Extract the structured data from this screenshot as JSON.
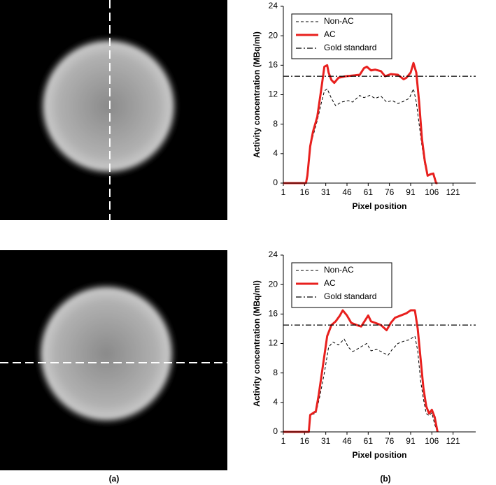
{
  "panel_labels": [
    "(a)",
    "(b)"
  ],
  "chart_data": [
    {
      "type": "line",
      "x_label": "Pixel position",
      "y_label": "Activity concentration (MBq/ml)",
      "xlim": [
        1,
        137
      ],
      "ylim": [
        0,
        24
      ],
      "xticks": [
        1,
        16,
        31,
        46,
        61,
        76,
        91,
        106,
        121
      ],
      "yticks": [
        0,
        4,
        8,
        12,
        16,
        20,
        24
      ],
      "legend": "upper left",
      "series": [
        {
          "name": "Non-AC",
          "color": "#000000",
          "linestyle": "dashed",
          "x": [
            1,
            17,
            18,
            20,
            25,
            28,
            30,
            32,
            35,
            38,
            42,
            47,
            50,
            55,
            58,
            62,
            66,
            70,
            74,
            78,
            82,
            86,
            90,
            93,
            95,
            97,
            99,
            101,
            103,
            107,
            109
          ],
          "values": [
            0,
            0,
            1,
            5,
            8.5,
            11,
            12.5,
            12.8,
            11.5,
            10.5,
            11,
            11.2,
            11,
            11.9,
            11.6,
            11.9,
            11.5,
            11.8,
            11,
            11.2,
            10.8,
            11.1,
            11.5,
            12.8,
            11,
            8,
            5,
            2.5,
            1,
            1.2,
            0
          ]
        },
        {
          "name": "AC",
          "color": "#e8201e",
          "linestyle": "solid",
          "x": [
            1,
            17,
            18,
            20,
            22,
            25,
            28,
            30,
            32,
            33,
            35,
            37,
            40,
            45,
            50,
            55,
            58,
            60,
            63,
            66,
            70,
            73,
            77,
            82,
            86,
            88,
            91,
            93,
            95,
            97,
            99,
            101,
            103,
            105,
            107,
            109,
            110
          ],
          "values": [
            0,
            0,
            1,
            5,
            7,
            9,
            13,
            15.8,
            16,
            15,
            14,
            13.6,
            14.3,
            14.5,
            14.6,
            14.7,
            15.6,
            15.8,
            15.3,
            15.4,
            15.2,
            14.5,
            14.8,
            14.7,
            14.1,
            14.3,
            15,
            16.3,
            15,
            11,
            6,
            3,
            1,
            1.2,
            1.3,
            0,
            0
          ]
        },
        {
          "name": "Gold standard",
          "color": "#000000",
          "linestyle": "dashdot",
          "x": [
            1,
            137
          ],
          "values": [
            14.5,
            14.5
          ]
        }
      ]
    },
    {
      "type": "line",
      "x_label": "Pixel position",
      "y_label": "Activity concentration (MBq/ml)",
      "xlim": [
        1,
        137
      ],
      "ylim": [
        0,
        24
      ],
      "xticks": [
        1,
        16,
        31,
        46,
        61,
        76,
        91,
        106,
        121
      ],
      "yticks": [
        0,
        4,
        8,
        12,
        16,
        20,
        24
      ],
      "legend": "upper left",
      "series": [
        {
          "name": "Non-AC",
          "color": "#000000",
          "linestyle": "dashed",
          "x": [
            1,
            19,
            20,
            24,
            27,
            30,
            33,
            36,
            40,
            44,
            47,
            50,
            53,
            58,
            60,
            63,
            67,
            72,
            75,
            78,
            82,
            86,
            90,
            94,
            96,
            98,
            100,
            102,
            104,
            106,
            108,
            110
          ],
          "values": [
            0,
            0,
            2.3,
            2.5,
            5,
            8,
            11.5,
            12.2,
            11.8,
            12.6,
            11.5,
            10.9,
            11.2,
            11.8,
            12,
            11,
            11.2,
            10.7,
            10.4,
            11.2,
            12,
            12.3,
            12.5,
            13,
            11,
            7,
            4.5,
            2.5,
            2.2,
            2.6,
            1,
            0
          ]
        },
        {
          "name": "AC",
          "color": "#e8201e",
          "linestyle": "solid",
          "x": [
            1,
            19,
            20,
            24,
            26,
            29,
            32,
            35,
            38,
            41,
            43,
            46,
            49,
            53,
            56,
            59,
            61,
            63,
            66,
            70,
            74,
            77,
            80,
            84,
            88,
            91,
            94,
            96,
            98,
            100,
            102,
            104,
            106,
            108,
            110
          ],
          "values": [
            0,
            0,
            2.3,
            2.8,
            5,
            9,
            13,
            14.5,
            15,
            15.8,
            16.5,
            15.8,
            14.8,
            14.5,
            14.3,
            15.2,
            15.8,
            15,
            14.8,
            14.5,
            13.8,
            14.8,
            15.5,
            15.8,
            16.1,
            16.5,
            16.5,
            14,
            10,
            6,
            3.5,
            2.5,
            3,
            2,
            0
          ]
        },
        {
          "name": "Gold standard",
          "color": "#000000",
          "linestyle": "dashdot",
          "x": [
            1,
            137
          ],
          "values": [
            14.5,
            14.5
          ]
        }
      ]
    }
  ]
}
